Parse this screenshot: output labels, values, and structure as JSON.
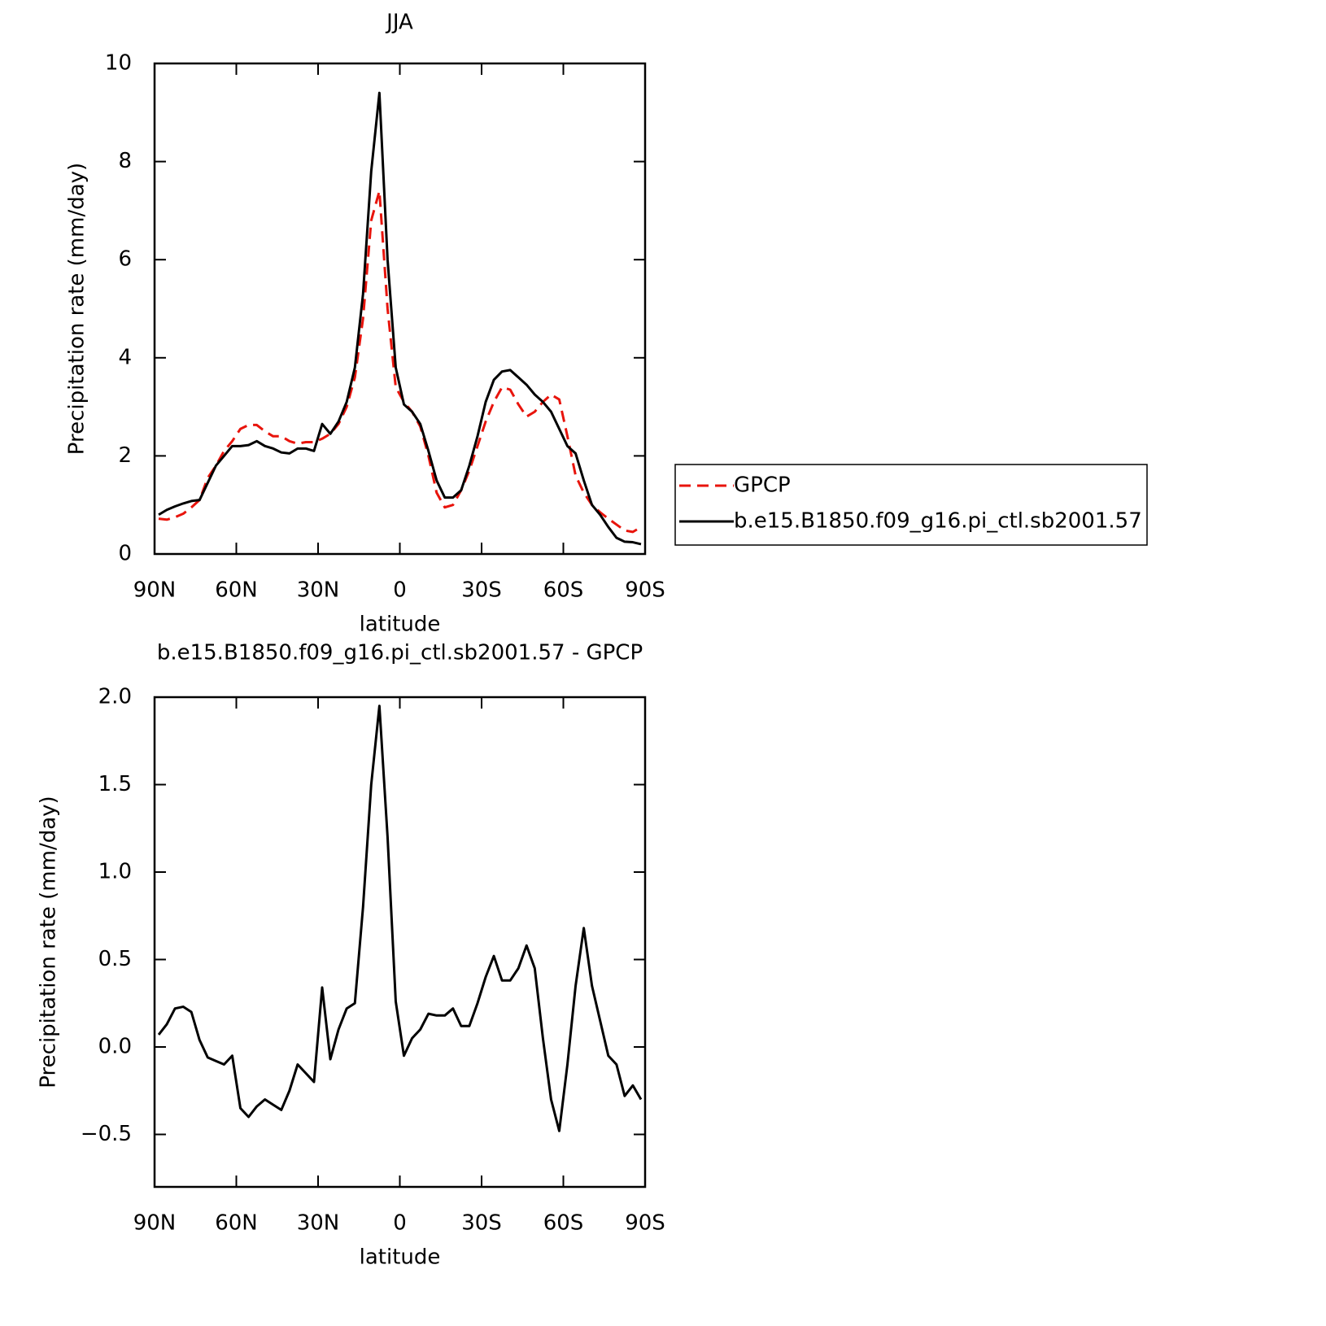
{
  "chart_data": [
    {
      "type": "line",
      "title": "JJA",
      "xlabel": "latitude",
      "ylabel": "Precipitation rate (mm/day)",
      "x": [
        88.5,
        85.5,
        82.5,
        79.5,
        76.5,
        73.5,
        70.5,
        67.5,
        64.5,
        61.5,
        58.5,
        55.5,
        52.5,
        49.5,
        46.5,
        43.5,
        40.5,
        37.5,
        34.5,
        31.5,
        28.5,
        25.5,
        22.5,
        19.5,
        16.5,
        13.5,
        10.5,
        7.5,
        4.5,
        1.5,
        -1.5,
        -4.5,
        -7.5,
        -10.5,
        -13.5,
        -16.5,
        -19.5,
        -22.5,
        -25.5,
        -28.5,
        -31.5,
        -34.5,
        -37.5,
        -40.5,
        -43.5,
        -46.5,
        -49.5,
        -52.5,
        -55.5,
        -58.5,
        -61.5,
        -64.5,
        -67.5,
        -70.5,
        -73.5,
        -76.5,
        -79.5,
        -82.5,
        -85.5,
        -88.5
      ],
      "xlim": [
        90,
        -90
      ],
      "xticks": [
        {
          "value": 90,
          "label": "90N"
        },
        {
          "value": 60,
          "label": "60N"
        },
        {
          "value": 30,
          "label": "30N"
        },
        0,
        {
          "value": -30,
          "label": "30S"
        },
        {
          "value": -60,
          "label": "60S"
        },
        {
          "value": -90,
          "label": "90S"
        }
      ],
      "ylim": [
        0,
        10
      ],
      "yticks": [
        0,
        2,
        4,
        6,
        8,
        10
      ],
      "legend": "right",
      "series": [
        {
          "name": "GPCP",
          "color": "#e8140c",
          "dash": true,
          "values": [
            0.72,
            0.7,
            0.75,
            0.82,
            0.95,
            1.1,
            1.55,
            1.8,
            2.1,
            2.3,
            2.55,
            2.63,
            2.63,
            2.5,
            2.4,
            2.4,
            2.3,
            2.25,
            2.28,
            2.28,
            2.35,
            2.45,
            2.65,
            3.0,
            3.6,
            4.8,
            6.8,
            7.4,
            5.0,
            3.4,
            3.1,
            2.9,
            2.6,
            2.0,
            1.25,
            0.95,
            1.0,
            1.3,
            1.7,
            2.2,
            2.7,
            3.1,
            3.4,
            3.35,
            3.05,
            2.8,
            2.9,
            3.1,
            3.25,
            3.15,
            2.4,
            1.6,
            1.25,
            1.0,
            0.85,
            0.72,
            0.6,
            0.48,
            0.45,
            0.55
          ]
        },
        {
          "name": "b.e15.B1850.f09_g16.pi_ctl.sb2001.57",
          "color": "#000000",
          "dash": false,
          "values": [
            0.8,
            0.9,
            0.97,
            1.03,
            1.08,
            1.1,
            1.45,
            1.8,
            2.0,
            2.2,
            2.2,
            2.22,
            2.3,
            2.2,
            2.15,
            2.07,
            2.05,
            2.15,
            2.15,
            2.1,
            2.65,
            2.45,
            2.7,
            3.1,
            3.8,
            5.3,
            7.8,
            9.4,
            6.0,
            3.8,
            3.05,
            2.9,
            2.65,
            2.1,
            1.5,
            1.15,
            1.15,
            1.3,
            1.8,
            2.4,
            3.1,
            3.55,
            3.72,
            3.75,
            3.6,
            3.45,
            3.25,
            3.1,
            2.9,
            2.55,
            2.2,
            2.05,
            1.5,
            1.0,
            0.8,
            0.55,
            0.33,
            0.25,
            0.24,
            0.2
          ]
        }
      ]
    },
    {
      "type": "line",
      "title": "b.e15.B1850.f09_g16.pi_ctl.sb2001.57 - GPCP",
      "xlabel": "latitude",
      "ylabel": "Precipitation rate (mm/day)",
      "x": [
        88.5,
        85.5,
        82.5,
        79.5,
        76.5,
        73.5,
        70.5,
        67.5,
        64.5,
        61.5,
        58.5,
        55.5,
        52.5,
        49.5,
        46.5,
        43.5,
        40.5,
        37.5,
        34.5,
        31.5,
        28.5,
        25.5,
        22.5,
        19.5,
        16.5,
        13.5,
        10.5,
        7.5,
        4.5,
        1.5,
        -1.5,
        -4.5,
        -7.5,
        -10.5,
        -13.5,
        -16.5,
        -19.5,
        -22.5,
        -25.5,
        -28.5,
        -31.5,
        -34.5,
        -37.5,
        -40.5,
        -43.5,
        -46.5,
        -49.5,
        -52.5,
        -55.5,
        -58.5,
        -61.5,
        -64.5,
        -67.5,
        -70.5,
        -73.5,
        -76.5,
        -79.5,
        -82.5,
        -85.5,
        -88.5
      ],
      "xlim": [
        90,
        -90
      ],
      "xticks": [
        {
          "value": 90,
          "label": "90N"
        },
        {
          "value": 60,
          "label": "60N"
        },
        {
          "value": 30,
          "label": "30N"
        },
        0,
        {
          "value": -30,
          "label": "30S"
        },
        {
          "value": -60,
          "label": "60S"
        },
        {
          "value": -90,
          "label": "90S"
        }
      ],
      "ylim": [
        -0.8,
        2.0
      ],
      "yticks": [
        {
          "value": -0.5,
          "label": "−0.5"
        },
        {
          "value": 0,
          "label": "0.0"
        },
        0.5,
        {
          "value": 1,
          "label": "1.0"
        },
        1.5,
        {
          "value": 2,
          "label": "2.0"
        }
      ],
      "series": [
        {
          "color": "#000000",
          "dash": false,
          "values": [
            0.07,
            0.13,
            0.22,
            0.23,
            0.2,
            0.04,
            -0.06,
            -0.08,
            -0.1,
            -0.05,
            -0.35,
            -0.4,
            -0.34,
            -0.3,
            -0.33,
            -0.36,
            -0.25,
            -0.1,
            -0.15,
            -0.2,
            0.34,
            -0.07,
            0.1,
            0.22,
            0.25,
            0.8,
            1.5,
            1.95,
            1.2,
            0.26,
            -0.05,
            0.05,
            0.1,
            0.19,
            0.18,
            0.18,
            0.22,
            0.12,
            0.12,
            0.25,
            0.4,
            0.52,
            0.38,
            0.38,
            0.45,
            0.58,
            0.45,
            0.05,
            -0.3,
            -0.48,
            -0.1,
            0.35,
            0.68,
            0.35,
            0.15,
            -0.05,
            -0.1,
            -0.28,
            -0.22,
            -0.3
          ]
        }
      ]
    }
  ]
}
